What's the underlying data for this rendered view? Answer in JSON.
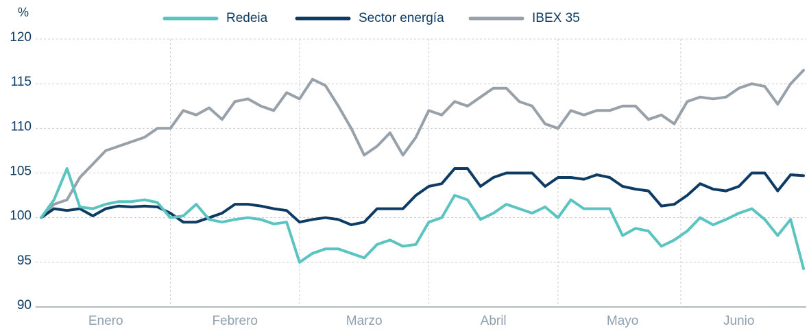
{
  "chart_data": {
    "type": "line",
    "y_label": "%",
    "categories": [
      null,
      null,
      null,
      null,
      null,
      "Enero",
      null,
      null,
      null,
      null,
      null,
      null,
      null,
      null,
      null,
      "Febrero",
      null,
      null,
      null,
      null,
      null,
      null,
      null,
      null,
      null,
      "Marzo",
      null,
      null,
      null,
      null,
      null,
      null,
      null,
      null,
      null,
      "Abril",
      null,
      null,
      null,
      null,
      null,
      null,
      null,
      null,
      null,
      "Mayo",
      null,
      null,
      null,
      null,
      null,
      null,
      null,
      null,
      "Junio",
      null,
      null,
      null,
      null,
      null
    ],
    "series": [
      {
        "name": "Redeia",
        "color": "#5bc4c1",
        "values": [
          100,
          102,
          105.5,
          101.2,
          101,
          101.5,
          101.8,
          101.8,
          102,
          101.7,
          100,
          100.2,
          101.5,
          99.8,
          99.5,
          99.8,
          100,
          99.8,
          99.3,
          99.5,
          95,
          96,
          96.5,
          96.5,
          96,
          95.5,
          97,
          97.5,
          96.8,
          97,
          99.5,
          100,
          102.5,
          102,
          99.8,
          100.5,
          101.5,
          101,
          100.5,
          101.2,
          100,
          102,
          101,
          101,
          101,
          98,
          98.8,
          98.5,
          96.8,
          97.5,
          98.5,
          100,
          99.2,
          99.8,
          100.5,
          101,
          99.8,
          98,
          99.8,
          94.3
        ]
      },
      {
        "name": "Sector energía",
        "color": "#0d3b63",
        "values": [
          100,
          101,
          100.8,
          101,
          100.2,
          101,
          101.3,
          101.2,
          101.3,
          101.2,
          100.5,
          99.5,
          99.5,
          100,
          100.5,
          101.5,
          101.5,
          101.3,
          101,
          100.8,
          99.5,
          99.8,
          100,
          99.8,
          99.2,
          99.5,
          101,
          101,
          101,
          102.5,
          103.5,
          103.8,
          105.5,
          105.5,
          103.5,
          104.5,
          105,
          105,
          105,
          103.5,
          104.5,
          104.5,
          104.3,
          104.8,
          104.5,
          103.5,
          103.2,
          103,
          101.3,
          101.5,
          102.5,
          103.8,
          103.2,
          103,
          103.5,
          105,
          105,
          103,
          104.8,
          104.7
        ]
      },
      {
        "name": "IBEX 35",
        "color": "#98a1a9",
        "values": [
          100,
          101.5,
          102,
          104.5,
          106,
          107.5,
          108,
          108.5,
          109,
          110,
          110,
          112,
          111.5,
          112.3,
          111,
          113,
          113.3,
          112.5,
          112,
          114,
          113.3,
          115.5,
          114.8,
          112.5,
          110,
          107,
          108,
          109.5,
          107,
          109,
          112,
          111.5,
          113,
          112.5,
          113.5,
          114.5,
          114.5,
          113,
          112.5,
          110.5,
          110,
          112,
          111.5,
          112,
          112,
          112.5,
          112.5,
          111,
          111.5,
          110.5,
          113,
          113.5,
          113.3,
          113.5,
          114.5,
          115,
          114.7,
          112.7,
          115,
          116.5
        ]
      }
    ],
    "ylim": [
      90,
      120
    ],
    "yticks": [
      90,
      95,
      100,
      105,
      110,
      115,
      120
    ],
    "grid": true
  }
}
